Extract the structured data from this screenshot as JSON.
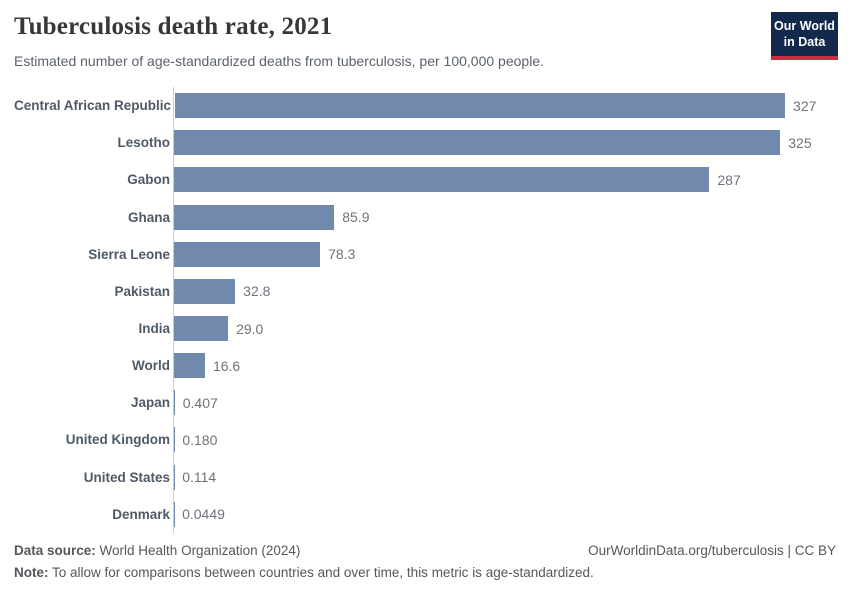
{
  "header": {
    "title": "Tuberculosis death rate, 2021",
    "subtitle": "Estimated number of age-standardized deaths from tuberculosis, per 100,000 people.",
    "logo": {
      "line1": "Our World",
      "line2": "in Data"
    }
  },
  "chart_data": {
    "type": "bar",
    "orientation": "horizontal",
    "title": "Tuberculosis death rate, 2021",
    "xlabel": "",
    "ylabel": "",
    "xlim": [
      0,
      327
    ],
    "grid": false,
    "legend": "none",
    "bar_color": "#7289ae",
    "categories": [
      "Central African Republic",
      "Lesotho",
      "Gabon",
      "Ghana",
      "Sierra Leone",
      "Pakistan",
      "India",
      "World",
      "Japan",
      "United Kingdom",
      "United States",
      "Denmark"
    ],
    "values": [
      327,
      325,
      287,
      85.9,
      78.3,
      32.8,
      29.0,
      16.6,
      0.407,
      0.18,
      0.114,
      0.0449
    ],
    "value_labels": [
      "327",
      "325",
      "287",
      "85.9",
      "78.3",
      "32.8",
      "29.0",
      "16.6",
      "0.407",
      "0.180",
      "0.114",
      "0.0449"
    ]
  },
  "footer": {
    "source_label": "Data source:",
    "source_text": " World Health Organization (2024)",
    "note_label": "Note:",
    "note_text": " To allow for comparisons between countries and over time, this metric is age-standardized.",
    "link": "OurWorldinData.org/tuberculosis | CC BY"
  },
  "colors": {
    "bar": "#7289ae",
    "axis_line": "#c9cdd4",
    "title_text": "#383636",
    "subtitle_text": "#5b626b",
    "country_label": "#4e5a66",
    "value_label": "#6e737b",
    "footer_text": "#56565c",
    "logo_background": "#12294b",
    "logo_accent": "#cc2d3e"
  }
}
